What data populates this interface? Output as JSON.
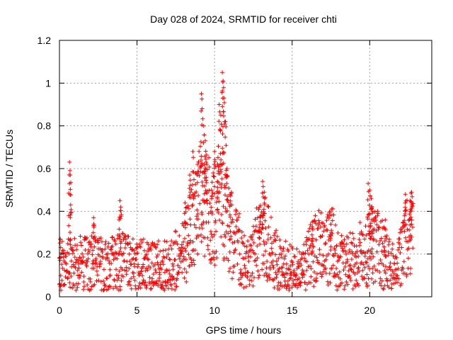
{
  "chart_data": {
    "type": "scatter",
    "title": "Day 028 of 2024, SRMTID for receiver chti",
    "xlabel": "GPS time / hours",
    "ylabel": "SRMTID / TECUs",
    "xlim": [
      0,
      24
    ],
    "ylim": [
      0,
      1.2
    ],
    "xticks": [
      0,
      5,
      10,
      15,
      20
    ],
    "yticks": [
      0,
      0.2,
      0.4,
      0.6,
      0.8,
      1,
      1.2
    ],
    "xtick_labels": [
      "0",
      "5",
      "10",
      "15",
      "20"
    ],
    "ytick_labels": [
      "0",
      "0.2",
      "0.4",
      "0.6",
      "0.8",
      "1",
      "1.2"
    ],
    "grid": true,
    "marker": "+",
    "series_color": "#ff0000",
    "x_extent": [
      0,
      22.8
    ],
    "baseline": [
      [
        0,
        0.16
      ],
      [
        0.3,
        0.12
      ],
      [
        0.6,
        0.2
      ],
      [
        1,
        0.15
      ],
      [
        2,
        0.15
      ],
      [
        3,
        0.14
      ],
      [
        4,
        0.16
      ],
      [
        5,
        0.15
      ],
      [
        6,
        0.14
      ],
      [
        7,
        0.13
      ],
      [
        7.7,
        0.18
      ],
      [
        8.3,
        0.26
      ],
      [
        8.8,
        0.38
      ],
      [
        9.2,
        0.48
      ],
      [
        9.6,
        0.42
      ],
      [
        10.0,
        0.36
      ],
      [
        10.4,
        0.44
      ],
      [
        10.8,
        0.38
      ],
      [
        11.2,
        0.26
      ],
      [
        11.8,
        0.2
      ],
      [
        12.3,
        0.17
      ],
      [
        12.8,
        0.26
      ],
      [
        13.2,
        0.3
      ],
      [
        13.6,
        0.22
      ],
      [
        14.2,
        0.15
      ],
      [
        15.0,
        0.12
      ],
      [
        15.6,
        0.1
      ],
      [
        16.2,
        0.2
      ],
      [
        16.7,
        0.24
      ],
      [
        17.2,
        0.22
      ],
      [
        17.6,
        0.24
      ],
      [
        18.0,
        0.15
      ],
      [
        18.5,
        0.15
      ],
      [
        19.2,
        0.2
      ],
      [
        19.9,
        0.18
      ],
      [
        20.3,
        0.25
      ],
      [
        20.8,
        0.2
      ],
      [
        21.3,
        0.15
      ],
      [
        21.8,
        0.13
      ],
      [
        22.2,
        0.25
      ],
      [
        22.8,
        0.3
      ]
    ],
    "spikes": [
      {
        "x": 0.05,
        "y": 0.27
      },
      {
        "x": 0.65,
        "y": 0.63
      },
      {
        "x": 0.7,
        "y": 0.57
      },
      {
        "x": 0.72,
        "y": 0.43
      },
      {
        "x": 2.2,
        "y": 0.37
      },
      {
        "x": 3.9,
        "y": 0.45
      },
      {
        "x": 3.95,
        "y": 0.42
      },
      {
        "x": 8.1,
        "y": 0.44
      },
      {
        "x": 8.4,
        "y": 0.57
      },
      {
        "x": 8.6,
        "y": 0.68
      },
      {
        "x": 8.9,
        "y": 0.62
      },
      {
        "x": 9.15,
        "y": 0.95
      },
      {
        "x": 9.2,
        "y": 0.88
      },
      {
        "x": 9.3,
        "y": 0.8
      },
      {
        "x": 9.4,
        "y": 0.73
      },
      {
        "x": 9.5,
        "y": 0.62
      },
      {
        "x": 9.8,
        "y": 0.5
      },
      {
        "x": 10.0,
        "y": 0.68
      },
      {
        "x": 10.2,
        "y": 0.62
      },
      {
        "x": 10.3,
        "y": 0.9
      },
      {
        "x": 10.4,
        "y": 0.85
      },
      {
        "x": 10.5,
        "y": 1.05
      },
      {
        "x": 10.55,
        "y": 1.01
      },
      {
        "x": 10.6,
        "y": 0.93
      },
      {
        "x": 10.7,
        "y": 0.82
      },
      {
        "x": 10.8,
        "y": 0.6
      },
      {
        "x": 11.0,
        "y": 0.48
      },
      {
        "x": 12.9,
        "y": 0.42
      },
      {
        "x": 13.1,
        "y": 0.54
      },
      {
        "x": 13.2,
        "y": 0.49
      },
      {
        "x": 16.3,
        "y": 0.35
      },
      {
        "x": 17.5,
        "y": 0.34
      },
      {
        "x": 19.9,
        "y": 0.53
      },
      {
        "x": 20.0,
        "y": 0.5
      },
      {
        "x": 20.1,
        "y": 0.46
      },
      {
        "x": 20.2,
        "y": 0.4
      },
      {
        "x": 21.0,
        "y": 0.36
      },
      {
        "x": 22.3,
        "y": 0.48
      },
      {
        "x": 22.6,
        "y": 0.45
      },
      {
        "x": 22.7,
        "y": 0.49
      }
    ]
  }
}
